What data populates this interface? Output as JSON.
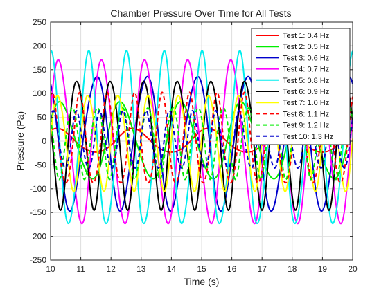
{
  "chart_data": {
    "type": "line",
    "title": "Chamber Pressure Over Time for All Tests",
    "xlabel": "Time (s)",
    "ylabel": "Pressure (Pa)",
    "xlim": [
      10,
      20
    ],
    "ylim": [
      -250,
      250
    ],
    "x_ticks": [
      "10",
      "11",
      "12",
      "13",
      "14",
      "15",
      "16",
      "17",
      "18",
      "19",
      "20"
    ],
    "y_ticks": [
      "250",
      "200",
      "150",
      "100",
      "50",
      "0",
      "-50",
      "-100",
      "-150",
      "-200",
      "-250"
    ],
    "grid": true,
    "legend_position": "top-right",
    "series": [
      {
        "name": "Test 1: 0.4 Hz",
        "color": "#ff0000",
        "dash": "solid",
        "freq_hz": 0.4,
        "amplitude": 25,
        "phase": 1.0
      },
      {
        "name": "Test 2: 0.5 Hz",
        "color": "#00ee00",
        "dash": "solid",
        "freq_hz": 0.5,
        "amplitude": 80,
        "phase": 0.5
      },
      {
        "name": "Test 3: 0.6 Hz",
        "color": "#0000cc",
        "dash": "solid",
        "freq_hz": 0.6,
        "amplitude": 140,
        "phase": 2.2
      },
      {
        "name": "Test 4: 0.7 Hz",
        "color": "#ff00ff",
        "dash": "solid",
        "freq_hz": 0.7,
        "amplitude": 170,
        "phase": 0.3
      },
      {
        "name": "Test 5: 0.8 Hz",
        "color": "#00eeee",
        "dash": "solid",
        "freq_hz": 0.8,
        "amplitude": 180,
        "phase": 1.6
      },
      {
        "name": "Test 6: 0.9 Hz",
        "color": "#000000",
        "dash": "solid",
        "freq_hz": 0.9,
        "amplitude": 135,
        "phase": 2.9
      },
      {
        "name": "Test 7: 1.0 Hz",
        "color": "#ffff00",
        "dash": "solid",
        "freq_hz": 1.0,
        "amplitude": 100,
        "phase": 0.0
      },
      {
        "name": "Test 8: 1.1 Hz",
        "color": "#ff0000",
        "dash": "dashed",
        "freq_hz": 1.1,
        "amplitude": 95,
        "phase": 1.2
      },
      {
        "name": "Test 9: 1.2 Hz",
        "color": "#00ee00",
        "dash": "dashed",
        "freq_hz": 1.2,
        "amplitude": 75,
        "phase": 2.5
      },
      {
        "name": "Test 10: 1.3 Hz",
        "color": "#0000cc",
        "dash": "dashed",
        "freq_hz": 1.3,
        "amplitude": 60,
        "phase": 0.8
      }
    ]
  }
}
